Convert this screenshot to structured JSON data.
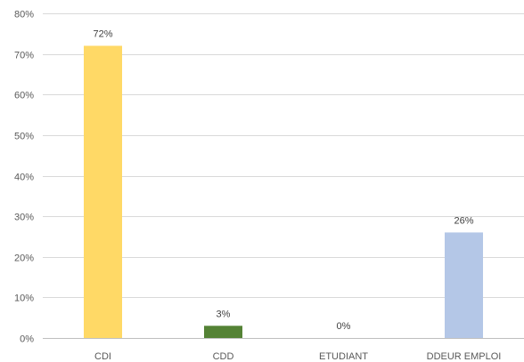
{
  "chart_data": {
    "type": "bar",
    "title": "",
    "xlabel": "",
    "ylabel": "",
    "categories": [
      "CDI",
      "CDD",
      "ETUDIANT",
      "DDEUR EMPLOI"
    ],
    "values": [
      72,
      3,
      0,
      26
    ],
    "data_labels": [
      "72%",
      "3%",
      "0%",
      "26%"
    ],
    "colors": [
      "#FFD966",
      "#548235",
      "#A5A5A5",
      "#B4C7E7"
    ],
    "ylim": [
      0,
      80
    ],
    "yticks": [
      0,
      10,
      20,
      30,
      40,
      50,
      60,
      70,
      80
    ],
    "ytick_labels": [
      "0%",
      "10%",
      "20%",
      "30%",
      "40%",
      "50%",
      "60%",
      "70%",
      "80%"
    ],
    "grid": true,
    "legend": "none"
  }
}
